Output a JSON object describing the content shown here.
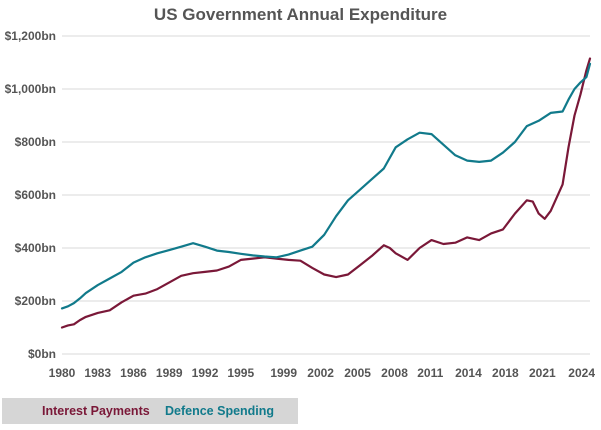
{
  "chart_data": {
    "type": "line",
    "title": "US Government Annual Expenditure",
    "xlabel": "",
    "ylabel": "",
    "xlim": [
      1980,
      2024.3
    ],
    "ylim": [
      0,
      1200
    ],
    "grid": true,
    "legend_position": "bottom-left",
    "y_ticks": [
      {
        "value": 0,
        "label": "$0bn"
      },
      {
        "value": 200,
        "label": "$200bn"
      },
      {
        "value": 400,
        "label": "$400bn"
      },
      {
        "value": 600,
        "label": "$600bn"
      },
      {
        "value": 800,
        "label": "$800bn"
      },
      {
        "value": 1000,
        "label": "$1,000bn"
      },
      {
        "value": 1200,
        "label": "$1,200bn"
      }
    ],
    "x_ticks": [
      "1980",
      "1983",
      "1986",
      "1989",
      "1992",
      "1995",
      "1999",
      "2002",
      "2005",
      "2008",
      "2011",
      "2014",
      "2018",
      "2021",
      "2024"
    ],
    "x_tick_positions": [
      1980,
      1983,
      1986,
      1989,
      1992,
      1995,
      1998.6,
      2001.7,
      2004.8,
      2007.9,
      2010.9,
      2014.1,
      2017.2,
      2020.3,
      2023.6
    ],
    "series": [
      {
        "name": "Interest Payments",
        "color": "#7a1838",
        "x": [
          1980,
          1980.5,
          1981,
          1981.5,
          1982,
          1983,
          1984,
          1985,
          1986,
          1987,
          1988,
          1989,
          1990,
          1991,
          1992,
          1993,
          1994,
          1995,
          1996,
          1997,
          1998,
          1999,
          2000,
          2001,
          2002,
          2003,
          2004,
          2005,
          2006,
          2007,
          2007.5,
          2008,
          2009,
          2010,
          2011,
          2012,
          2013,
          2014,
          2015,
          2016,
          2017,
          2018,
          2019,
          2019.5,
          2020,
          2020.5,
          2021,
          2022,
          2022.5,
          2023,
          2023.5,
          2024,
          2024.3
        ],
        "values": [
          100,
          108,
          112,
          128,
          140,
          155,
          165,
          195,
          220,
          228,
          245,
          270,
          295,
          305,
          310,
          315,
          330,
          355,
          360,
          365,
          360,
          355,
          352,
          325,
          300,
          290,
          300,
          335,
          370,
          410,
          400,
          380,
          355,
          400,
          430,
          415,
          420,
          440,
          430,
          455,
          470,
          530,
          580,
          575,
          530,
          510,
          540,
          640,
          780,
          900,
          980,
          1070,
          1115
        ]
      },
      {
        "name": "Defence Spending",
        "color": "#117a8b",
        "x": [
          1980,
          1980.5,
          1981,
          1981.5,
          1982,
          1983,
          1984,
          1985,
          1986,
          1987,
          1988,
          1989,
          1990,
          1991,
          1992,
          1993,
          1994,
          1995,
          1996,
          1997,
          1998,
          1999,
          2000,
          2001,
          2002,
          2003,
          2004,
          2005,
          2006,
          2007,
          2008,
          2009,
          2010,
          2011,
          2012,
          2013,
          2014,
          2015,
          2016,
          2017,
          2018,
          2019,
          2020,
          2021,
          2022,
          2022.5,
          2023,
          2023.5,
          2024,
          2024.3
        ],
        "values": [
          172,
          180,
          192,
          210,
          230,
          260,
          285,
          310,
          345,
          365,
          380,
          392,
          405,
          418,
          405,
          390,
          385,
          378,
          372,
          368,
          365,
          375,
          390,
          405,
          450,
          520,
          580,
          620,
          660,
          700,
          780,
          810,
          835,
          830,
          790,
          750,
          730,
          725,
          730,
          760,
          800,
          860,
          880,
          910,
          915,
          960,
          1000,
          1025,
          1045,
          1095
        ]
      }
    ]
  },
  "legend": {
    "items": [
      {
        "label": "Interest Payments",
        "color": "#7a1838"
      },
      {
        "label": "Defence Spending",
        "color": "#117a8b"
      }
    ]
  }
}
